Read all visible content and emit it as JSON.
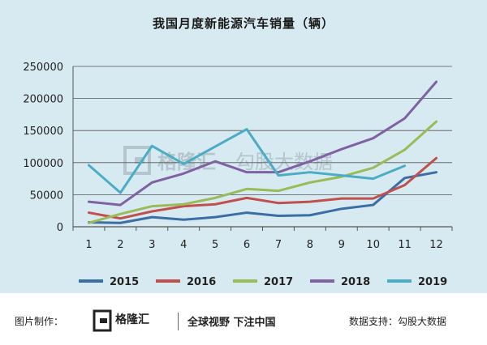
{
  "chart_data": {
    "type": "line",
    "title": "我国月度新能源汽车销量（辆）",
    "categories": [
      "1",
      "2",
      "3",
      "4",
      "5",
      "6",
      "7",
      "8",
      "9",
      "10",
      "11",
      "12"
    ],
    "ylim": [
      0,
      250000
    ],
    "yticks": [
      "0",
      "50000",
      "100000",
      "150000",
      "200000",
      "250000"
    ],
    "grid": true,
    "legend_position": "bottom",
    "series": [
      {
        "name": "2015",
        "color": "#3a6ea5",
        "values": [
          7000,
          6000,
          15000,
          11000,
          15000,
          22000,
          17000,
          18000,
          28000,
          34000,
          76000,
          85000
        ]
      },
      {
        "name": "2016",
        "color": "#c0504d",
        "values": [
          22000,
          13000,
          24000,
          32000,
          35000,
          45000,
          37000,
          39000,
          44000,
          44000,
          65000,
          107000
        ]
      },
      {
        "name": "2017",
        "color": "#9bbb59",
        "values": [
          6000,
          20000,
          32000,
          35000,
          45000,
          59000,
          56000,
          69000,
          78000,
          92000,
          120000,
          164000
        ]
      },
      {
        "name": "2018",
        "color": "#7f62a3",
        "values": [
          39000,
          34000,
          69000,
          83000,
          102000,
          85000,
          85000,
          102000,
          121000,
          138000,
          169000,
          226000
        ]
      },
      {
        "name": "2019",
        "color": "#4bacc6",
        "values": [
          96000,
          53000,
          126000,
          98000,
          null,
          152000,
          80000,
          85000,
          80000,
          75000,
          95000,
          null
        ]
      }
    ]
  },
  "watermark": {
    "brand": "格隆汇",
    "text": "勾股大数据"
  },
  "footer": {
    "made_by_label": "图片制作：",
    "brand_name": "格隆汇",
    "slogan": "全球视野  下注中国",
    "data_support_label": "数据支持：勾股大数据"
  }
}
